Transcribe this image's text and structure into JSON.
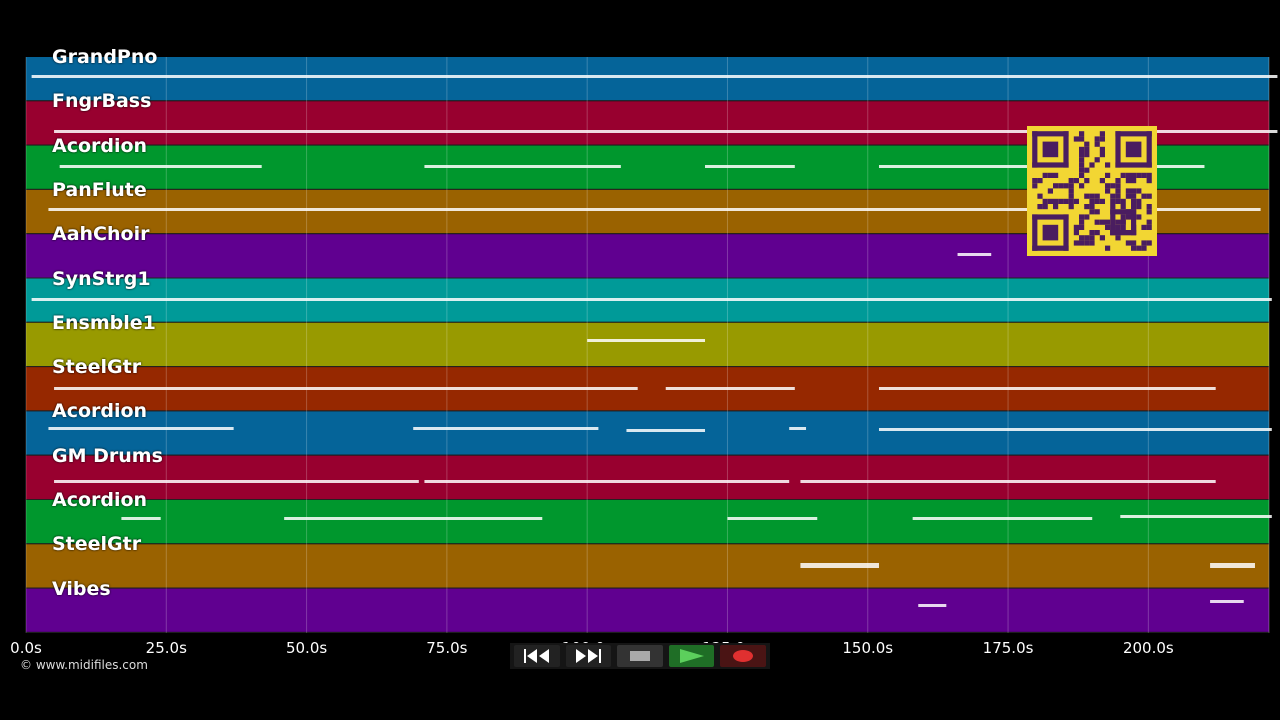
{
  "tracks": [
    {
      "name": "GrandPno",
      "color": "#056499"
    },
    {
      "name": "FngrBass",
      "color": "#98002f"
    },
    {
      "name": "Acordion",
      "color": "#00972d"
    },
    {
      "name": "PanFlute",
      "color": "#9a6200"
    },
    {
      "name": "AahChoir",
      "color": "#600090"
    },
    {
      "name": "SynStrg1",
      "color": "#009a98"
    },
    {
      "name": "Ensmble1",
      "color": "#989a00"
    },
    {
      "name": "SteelGtr",
      "color": "#962800"
    },
    {
      "name": "Acordion",
      "color": "#056499"
    },
    {
      "name": "GM Drums",
      "color": "#98002f"
    },
    {
      "name": "Acordion",
      "color": "#00972d"
    },
    {
      "name": "SteelGtr",
      "color": "#9a6200"
    },
    {
      "name": "Vibes",
      "color": "#600090"
    }
  ],
  "timeline": {
    "ticks": [
      "0.0s",
      "25.0s",
      "50.0s",
      "75.0s",
      "100.0s",
      "125.0s",
      "150.0s",
      "175.0s",
      "200.0s"
    ],
    "tick_values": [
      0,
      25,
      50,
      75,
      100,
      125,
      150,
      175,
      200
    ],
    "max_seconds": 221.5
  },
  "notes": [
    [
      [
        1,
        223,
        76,
        1
      ]
    ],
    [
      [
        5,
        223,
        131,
        1
      ]
    ],
    [
      [
        6,
        42,
        166,
        1
      ],
      [
        71,
        106,
        166,
        1
      ],
      [
        121,
        137,
        166,
        1
      ],
      [
        152,
        210,
        166,
        1
      ]
    ],
    [
      [
        4,
        220,
        209,
        1
      ]
    ],
    [
      [
        166,
        172,
        254,
        1
      ]
    ],
    [
      [
        1,
        222,
        299,
        1
      ]
    ],
    [
      [
        100,
        121,
        340,
        1
      ]
    ],
    [
      [
        5,
        109,
        388,
        1
      ],
      [
        114,
        137,
        388,
        1
      ],
      [
        152,
        212,
        388,
        1
      ]
    ],
    [
      [
        4,
        37,
        428,
        1
      ],
      [
        69,
        102,
        428,
        1
      ],
      [
        107,
        121,
        430,
        1
      ],
      [
        136,
        139,
        428,
        1
      ],
      [
        152,
        222,
        429,
        1
      ]
    ],
    [
      [
        5,
        70,
        481,
        1
      ],
      [
        71,
        136,
        481,
        1
      ],
      [
        138,
        212,
        481,
        1
      ]
    ],
    [
      [
        17,
        24,
        518,
        1
      ],
      [
        46,
        92,
        518,
        1
      ],
      [
        125,
        141,
        518,
        1
      ],
      [
        158,
        190,
        518,
        1
      ],
      [
        195,
        222,
        516,
        1
      ]
    ],
    [
      [
        138,
        152,
        565,
        2
      ],
      [
        211,
        219,
        565,
        2
      ]
    ],
    [
      [
        159,
        164,
        605,
        1
      ],
      [
        211,
        217,
        601,
        1
      ]
    ]
  ],
  "controls": {
    "rewind": "rewind-icon",
    "fast_forward": "fast-forward-icon",
    "stop": "stop-icon",
    "play": "play-icon",
    "record": "record-icon"
  },
  "copyright": "© www.midifiles.com"
}
